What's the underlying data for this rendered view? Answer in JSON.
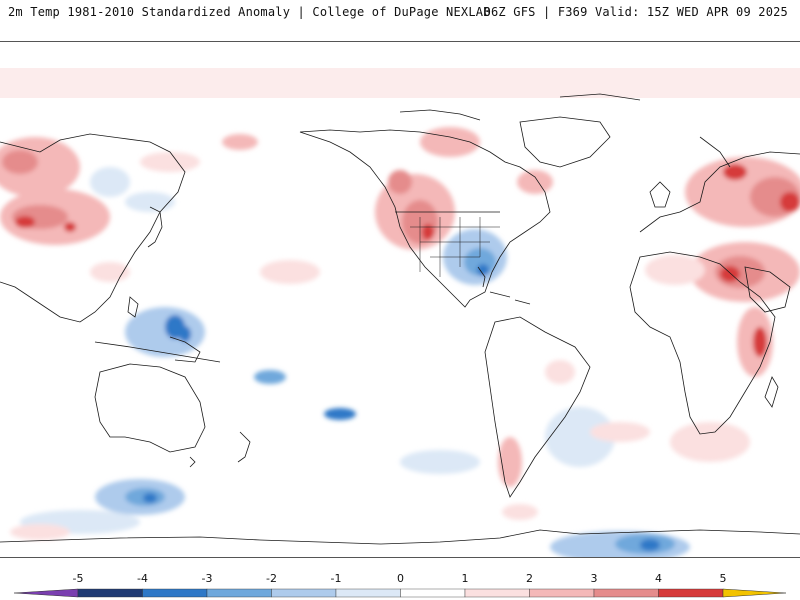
{
  "header": {
    "title_left": "2m Temp 1981-2010 Standardized Anomaly | College of DuPage NEXLAB",
    "title_right": "06Z GFS | F369 Valid: 15Z WED APR 09 2025"
  },
  "map": {
    "projection": "equirectangular",
    "center": "Pacific (180°)",
    "field": "2m temperature standardized anomaly",
    "anomaly_regions": [
      {
        "name": "Eastern Europe / Russia",
        "sign": "warm",
        "max": 4
      },
      {
        "name": "Middle East / Arabia",
        "sign": "warm",
        "max": 4
      },
      {
        "name": "Central Asia / Tibet",
        "sign": "warm",
        "max": 4
      },
      {
        "name": "Western North America",
        "sign": "warm",
        "max": 3
      },
      {
        "name": "Northeast Canada",
        "sign": "warm",
        "max": 3
      },
      {
        "name": "Southeastern United States / Gulf",
        "sign": "cold",
        "max": -3
      },
      {
        "name": "Western Pacific / Philippines",
        "sign": "cold",
        "max": -3
      },
      {
        "name": "Southern Ocean south of Australia",
        "sign": "cold",
        "max": -3
      },
      {
        "name": "Antarctic coast south of Africa",
        "sign": "cold",
        "max": -3
      },
      {
        "name": "Southern tip of South America",
        "sign": "warm",
        "max": 2
      },
      {
        "name": "Eastern Africa",
        "sign": "warm",
        "max": 3
      }
    ]
  },
  "legend": {
    "ticks": [
      "-5",
      "-4",
      "-3",
      "-2",
      "-1",
      "0",
      "1",
      "2",
      "3",
      "4",
      "5"
    ],
    "colors": [
      "#7a3fb0",
      "#1f3a73",
      "#2e78c7",
      "#6fa8dc",
      "#aecbec",
      "#dce8f6",
      "#ffffff",
      "#fbe0e0",
      "#f4b8b8",
      "#e58c8c",
      "#d63a3a",
      "#a8101c",
      "#f2c300"
    ]
  }
}
